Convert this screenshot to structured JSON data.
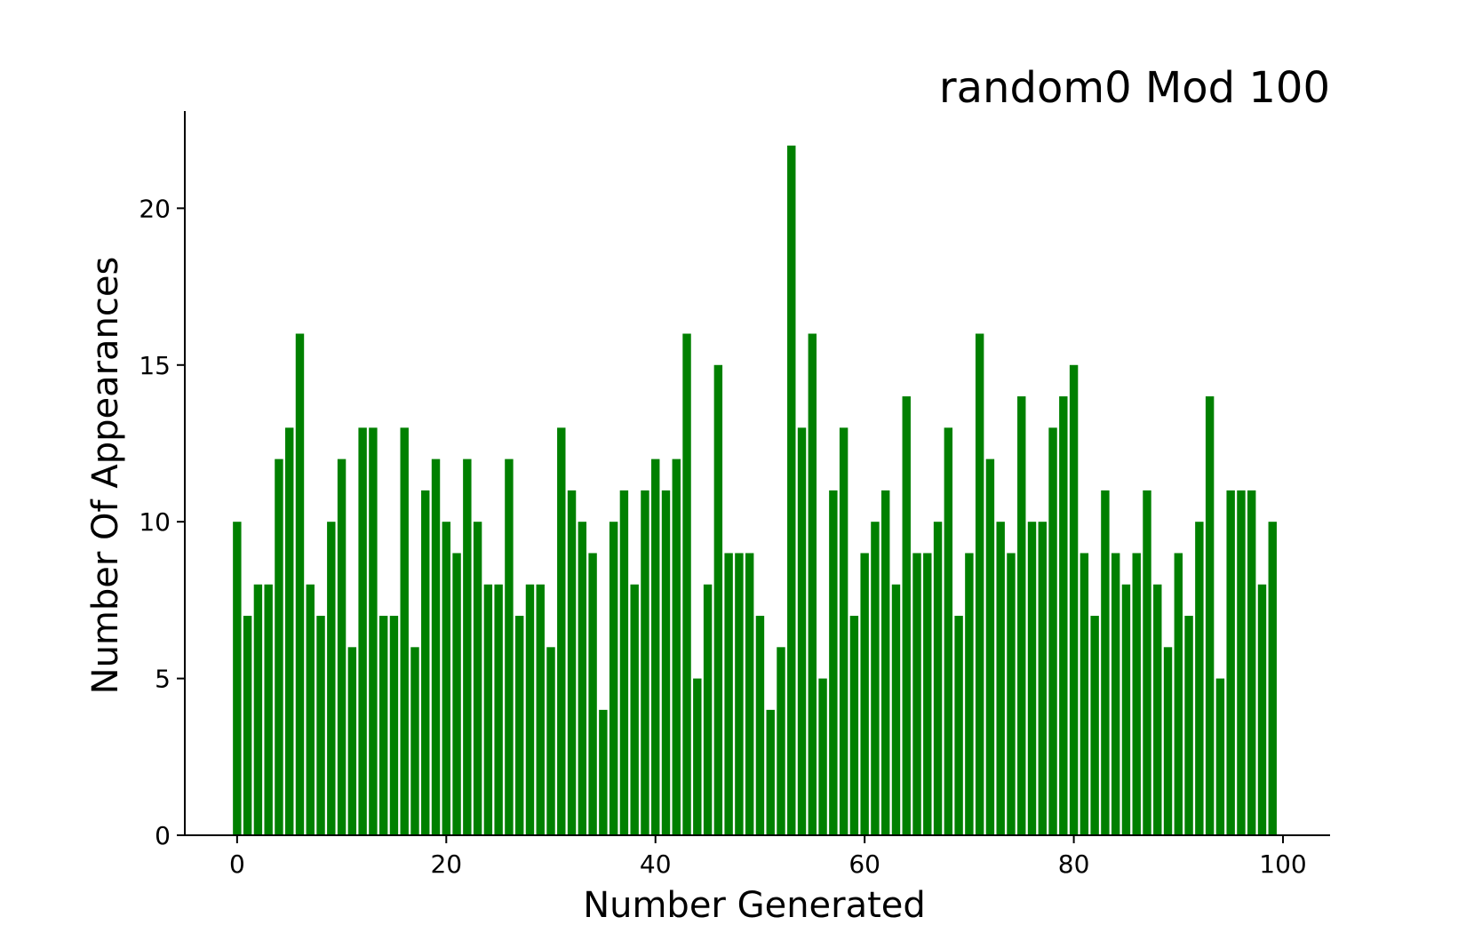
{
  "chart_data": {
    "type": "bar",
    "title": "random0 Mod 100",
    "xlabel": "Number Generated",
    "ylabel": "Number Of Appearances",
    "bar_color": "#008000",
    "x": [
      0,
      1,
      2,
      3,
      4,
      5,
      6,
      7,
      8,
      9,
      10,
      11,
      12,
      13,
      14,
      15,
      16,
      17,
      18,
      19,
      20,
      21,
      22,
      23,
      24,
      25,
      26,
      27,
      28,
      29,
      30,
      31,
      32,
      33,
      34,
      35,
      36,
      37,
      38,
      39,
      40,
      41,
      42,
      43,
      44,
      45,
      46,
      47,
      48,
      49,
      50,
      51,
      52,
      53,
      54,
      55,
      56,
      57,
      58,
      59,
      60,
      61,
      62,
      63,
      64,
      65,
      66,
      67,
      68,
      69,
      70,
      71,
      72,
      73,
      74,
      75,
      76,
      77,
      78,
      79,
      80,
      81,
      82,
      83,
      84,
      85,
      86,
      87,
      88,
      89,
      90,
      91,
      92,
      93,
      94,
      95,
      96,
      97,
      98,
      99
    ],
    "values": [
      10,
      7,
      8,
      8,
      12,
      13,
      16,
      8,
      7,
      10,
      12,
      6,
      13,
      13,
      7,
      7,
      13,
      6,
      11,
      12,
      10,
      9,
      12,
      10,
      8,
      8,
      12,
      7,
      8,
      8,
      6,
      13,
      11,
      10,
      9,
      4,
      10,
      11,
      8,
      11,
      12,
      11,
      12,
      16,
      5,
      8,
      15,
      9,
      9,
      9,
      7,
      4,
      6,
      22,
      13,
      16,
      5,
      11,
      13,
      7,
      9,
      10,
      11,
      8,
      14,
      9,
      9,
      10,
      13,
      7,
      9,
      16,
      12,
      10,
      9,
      14,
      10,
      10,
      13,
      14,
      15,
      9,
      7,
      11,
      9,
      8,
      9,
      11,
      8,
      6,
      9,
      7,
      10,
      14,
      5,
      11,
      11,
      11,
      8,
      10
    ],
    "xlim": [
      -5,
      104.5
    ],
    "ylim": [
      0,
      23.1
    ],
    "xticks": [
      0,
      20,
      40,
      60,
      80,
      100
    ],
    "xtick_labels": [
      "0",
      "20",
      "40",
      "60",
      "80",
      "100"
    ],
    "yticks": [
      0,
      5,
      10,
      15,
      20
    ],
    "ytick_labels": [
      "0",
      "5",
      "10",
      "15",
      "20"
    ],
    "grid": false,
    "spines": [
      "left",
      "bottom"
    ]
  }
}
